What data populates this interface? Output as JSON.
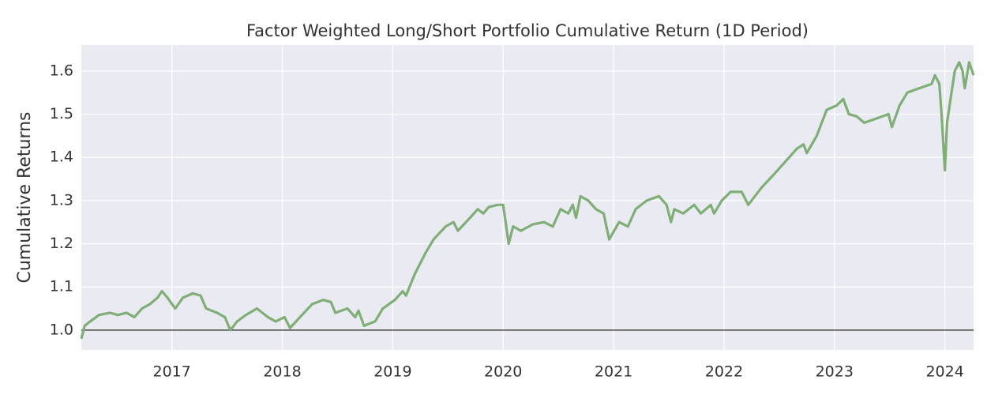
{
  "chart_data": {
    "type": "line",
    "title": "Factor Weighted Long/Short Portfolio Cumulative Return (1D Period)",
    "y_label": "Cumulative Returns",
    "x": [
      2016.18,
      2016.21,
      2016.26,
      2016.34,
      2016.44,
      2016.51,
      2016.59,
      2016.66,
      2016.73,
      2016.8,
      2016.87,
      2016.91,
      2016.96,
      2017.03,
      2017.1,
      2017.19,
      2017.26,
      2017.31,
      2017.41,
      2017.48,
      2017.53,
      2017.59,
      2017.67,
      2017.77,
      2017.87,
      2017.94,
      2018.02,
      2018.07,
      2018.16,
      2018.27,
      2018.37,
      2018.44,
      2018.48,
      2018.59,
      2018.66,
      2018.69,
      2018.74,
      2018.84,
      2018.91,
      2019.02,
      2019.09,
      2019.12,
      2019.2,
      2019.3,
      2019.37,
      2019.48,
      2019.55,
      2019.59,
      2019.7,
      2019.77,
      2019.82,
      2019.87,
      2019.95,
      2020.0,
      2020.05,
      2020.09,
      2020.16,
      2020.27,
      2020.37,
      2020.45,
      2020.52,
      2020.59,
      2020.63,
      2020.66,
      2020.7,
      2020.77,
      2020.84,
      2020.91,
      2020.96,
      2021.05,
      2021.13,
      2021.2,
      2021.3,
      2021.41,
      2021.48,
      2021.52,
      2021.55,
      2021.63,
      2021.73,
      2021.79,
      2021.88,
      2021.91,
      2021.98,
      2022.06,
      2022.16,
      2022.22,
      2022.34,
      2022.45,
      2022.52,
      2022.59,
      2022.66,
      2022.72,
      2022.75,
      2022.84,
      2022.93,
      2023.02,
      2023.08,
      2023.13,
      2023.2,
      2023.27,
      2023.38,
      2023.49,
      2023.52,
      2023.59,
      2023.66,
      2023.77,
      2023.88,
      2023.91,
      2023.95,
      2023.97,
      2024.0,
      2024.02,
      2024.06,
      2024.09,
      2024.13,
      2024.16,
      2024.18,
      2024.22,
      2024.26
    ],
    "values": [
      0.98,
      1.01,
      1.02,
      1.035,
      1.04,
      1.035,
      1.04,
      1.03,
      1.05,
      1.06,
      1.075,
      1.09,
      1.075,
      1.05,
      1.075,
      1.085,
      1.08,
      1.05,
      1.04,
      1.03,
      1.0,
      1.02,
      1.035,
      1.05,
      1.03,
      1.02,
      1.03,
      1.005,
      1.03,
      1.06,
      1.07,
      1.065,
      1.04,
      1.05,
      1.03,
      1.045,
      1.01,
      1.02,
      1.05,
      1.07,
      1.09,
      1.08,
      1.13,
      1.18,
      1.21,
      1.24,
      1.25,
      1.23,
      1.26,
      1.28,
      1.27,
      1.285,
      1.29,
      1.29,
      1.2,
      1.24,
      1.23,
      1.245,
      1.25,
      1.24,
      1.28,
      1.27,
      1.29,
      1.26,
      1.31,
      1.3,
      1.28,
      1.27,
      1.21,
      1.25,
      1.24,
      1.28,
      1.3,
      1.31,
      1.29,
      1.25,
      1.28,
      1.27,
      1.29,
      1.27,
      1.29,
      1.27,
      1.3,
      1.32,
      1.32,
      1.29,
      1.33,
      1.36,
      1.38,
      1.4,
      1.42,
      1.43,
      1.41,
      1.45,
      1.51,
      1.52,
      1.535,
      1.5,
      1.495,
      1.48,
      1.49,
      1.5,
      1.47,
      1.52,
      1.55,
      1.56,
      1.57,
      1.59,
      1.57,
      1.5,
      1.37,
      1.48,
      1.55,
      1.6,
      1.62,
      1.6,
      1.56,
      1.62,
      1.59
    ],
    "color": "#7fae76",
    "hline": 1.0,
    "hline_color": "#444444",
    "xlim": [
      2016.18,
      2024.26
    ],
    "xticks": [
      2017,
      2018,
      2019,
      2020,
      2021,
      2022,
      2023,
      2024
    ],
    "ylim": [
      0.954,
      1.66
    ],
    "yticks": [
      {
        "value": 1.0,
        "label": "1.0"
      },
      1.1,
      1.2,
      1.3,
      1.4,
      1.5,
      1.6
    ],
    "grid": true
  }
}
